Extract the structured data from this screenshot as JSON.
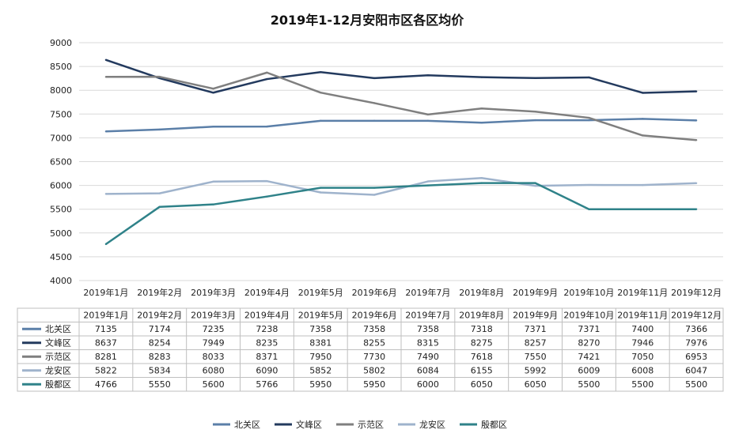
{
  "chart_data": {
    "type": "line",
    "title": "2019年1-12月安阳市区各区均价",
    "categories": [
      "2019年1月",
      "2019年2月",
      "2019年3月",
      "2019年4月",
      "2019年5月",
      "2019年6月",
      "2019年7月",
      "2019年8月",
      "2019年9月",
      "2019年10月",
      "2019年11月",
      "2019年12月"
    ],
    "ylim": [
      4000,
      9000
    ],
    "yticks": [
      4000,
      4500,
      5000,
      5500,
      6000,
      6500,
      7000,
      7500,
      8000,
      8500,
      9000
    ],
    "grid": true,
    "legend": "bottom",
    "series": [
      {
        "name": "北关区",
        "color": "#5b7fa8",
        "values": [
          7135,
          7174,
          7235,
          7238,
          7358,
          7358,
          7358,
          7318,
          7371,
          7371,
          7400,
          7366
        ]
      },
      {
        "name": "文峰区",
        "color": "#233a5e",
        "values": [
          8637,
          8254,
          7949,
          8235,
          8381,
          8255,
          8315,
          8275,
          8257,
          8270,
          7946,
          7976
        ]
      },
      {
        "name": "示范区",
        "color": "#7f7f7f",
        "values": [
          8281,
          8283,
          8033,
          8371,
          7950,
          7730,
          7490,
          7618,
          7550,
          7421,
          7050,
          6953
        ]
      },
      {
        "name": "龙安区",
        "color": "#9fb3cc",
        "values": [
          5822,
          5834,
          6080,
          6090,
          5852,
          5802,
          6084,
          6155,
          5992,
          6009,
          6008,
          6047
        ]
      },
      {
        "name": "殷都区",
        "color": "#2f8289",
        "values": [
          4766,
          5550,
          5600,
          5766,
          5950,
          5950,
          6000,
          6050,
          6050,
          5500,
          5500,
          5500
        ]
      }
    ]
  }
}
